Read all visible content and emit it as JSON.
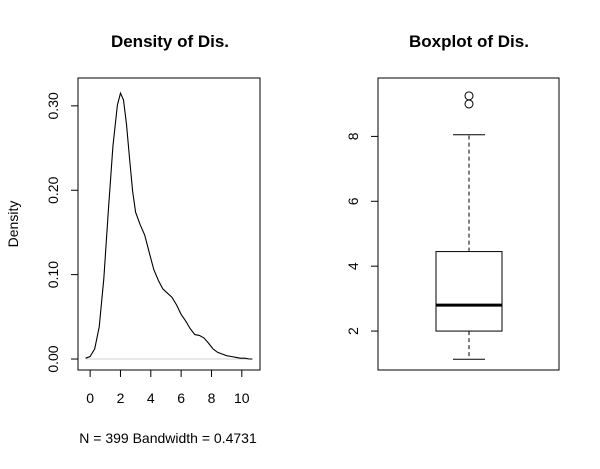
{
  "chart_data": [
    {
      "type": "line",
      "title": "Density of Dis.",
      "xlabel": "N = 399   Bandwidth = 0.4731",
      "ylabel": "Density",
      "xlim": [
        -0.8,
        11.2
      ],
      "ylim": [
        -0.013,
        0.333
      ],
      "x_ticks": [
        "0",
        "2",
        "4",
        "6",
        "8",
        "10"
      ],
      "y_ticks": [
        "0.00",
        "0.10",
        "0.20",
        "0.30"
      ],
      "x": [
        -0.3,
        0.0,
        0.3,
        0.6,
        0.9,
        1.2,
        1.5,
        1.8,
        2.0,
        2.2,
        2.4,
        2.6,
        2.8,
        3.0,
        3.3,
        3.6,
        3.9,
        4.2,
        4.5,
        4.8,
        5.1,
        5.4,
        5.7,
        6.0,
        6.3,
        6.6,
        6.9,
        7.2,
        7.5,
        7.8,
        8.1,
        8.4,
        8.7,
        9.0,
        9.3,
        9.6,
        9.9,
        10.2,
        10.5,
        10.7
      ],
      "y": [
        0.001,
        0.003,
        0.012,
        0.038,
        0.095,
        0.175,
        0.252,
        0.301,
        0.315,
        0.307,
        0.278,
        0.237,
        0.199,
        0.174,
        0.159,
        0.147,
        0.126,
        0.106,
        0.093,
        0.083,
        0.078,
        0.073,
        0.064,
        0.053,
        0.045,
        0.036,
        0.029,
        0.028,
        0.025,
        0.019,
        0.012,
        0.008,
        0.006,
        0.004,
        0.003,
        0.002,
        0.001,
        0.001,
        0.0,
        0.0
      ]
    },
    {
      "type": "boxplot",
      "title": "Boxplot of Dis.",
      "ylim": [
        0.8,
        9.8
      ],
      "y_ticks": [
        "2",
        "4",
        "6",
        "8"
      ],
      "whisker_low": 1.13,
      "q1": 2.0,
      "median": 2.8,
      "q3": 4.45,
      "whisker_high": 8.05,
      "outliers": [
        9.0,
        9.25
      ]
    }
  ]
}
